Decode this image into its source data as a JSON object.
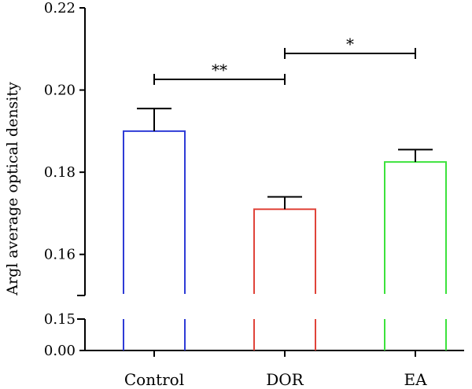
{
  "chart_data": {
    "type": "bar",
    "ylabel": "Argl average optical density",
    "categories": [
      "Control",
      "DOR",
      "EA"
    ],
    "series": [
      {
        "values": [
          0.19,
          0.171,
          0.1825
        ],
        "errors": [
          0.0055,
          0.003,
          0.003
        ],
        "colors": [
          "#2e3bd6",
          "#e0443a",
          "#3ce23c"
        ]
      }
    ],
    "y_axis": {
      "broken": true,
      "lower_segment": {
        "range": [
          0.0,
          0.15
        ],
        "ticks": [
          "0.00",
          "0.15"
        ]
      },
      "upper_segment": {
        "range": [
          0.15,
          0.22
        ],
        "ticks": [
          "0.16",
          "0.18",
          "0.20",
          "0.22"
        ]
      }
    },
    "bar_fill": "none",
    "grid": false,
    "legend": "none",
    "significance": [
      {
        "from": "Control",
        "to": "DOR",
        "label": "**"
      },
      {
        "from": "DOR",
        "to": "EA",
        "label": "*"
      }
    ]
  }
}
